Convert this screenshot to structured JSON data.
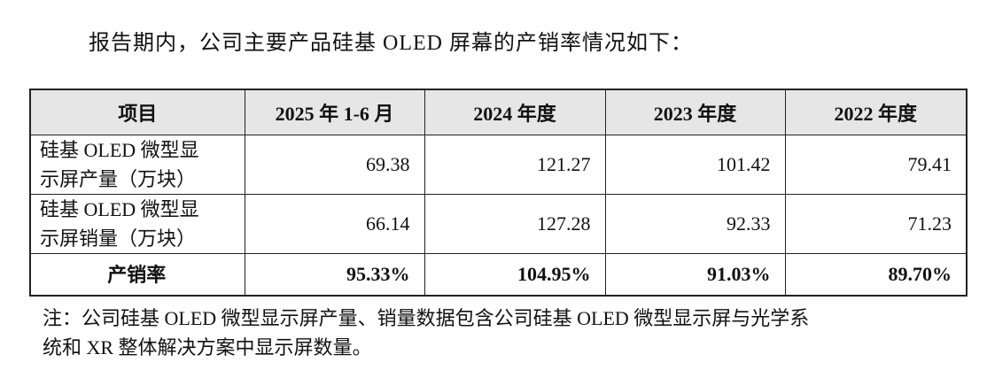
{
  "intro": "报告期内，公司主要产品硅基 OLED 屏幕的产销率情况如下：",
  "table": {
    "header": [
      "项目",
      "2025 年 1-6 月",
      "2024 年度",
      "2023 年度",
      "2022 年度"
    ],
    "rows": [
      [
        [
          "硅基 OLED 微型显",
          "示屏产量（万块）"
        ],
        "69.38",
        "121.27",
        "101.42",
        "79.41"
      ],
      [
        [
          "硅基 OLED 微型显",
          "示屏销量（万块）"
        ],
        "66.14",
        "127.28",
        "92.33",
        "71.23"
      ],
      [
        [
          "产销率"
        ],
        "95.33%",
        "104.95%",
        "91.03%",
        "89.70%"
      ]
    ]
  },
  "note": [
    "注：公司硅基 OLED 微型显示屏产量、销量数据包含公司硅基 OLED 微型显示屏与光学系",
    "统和 XR 整体解决方案中显示屏数量。"
  ]
}
